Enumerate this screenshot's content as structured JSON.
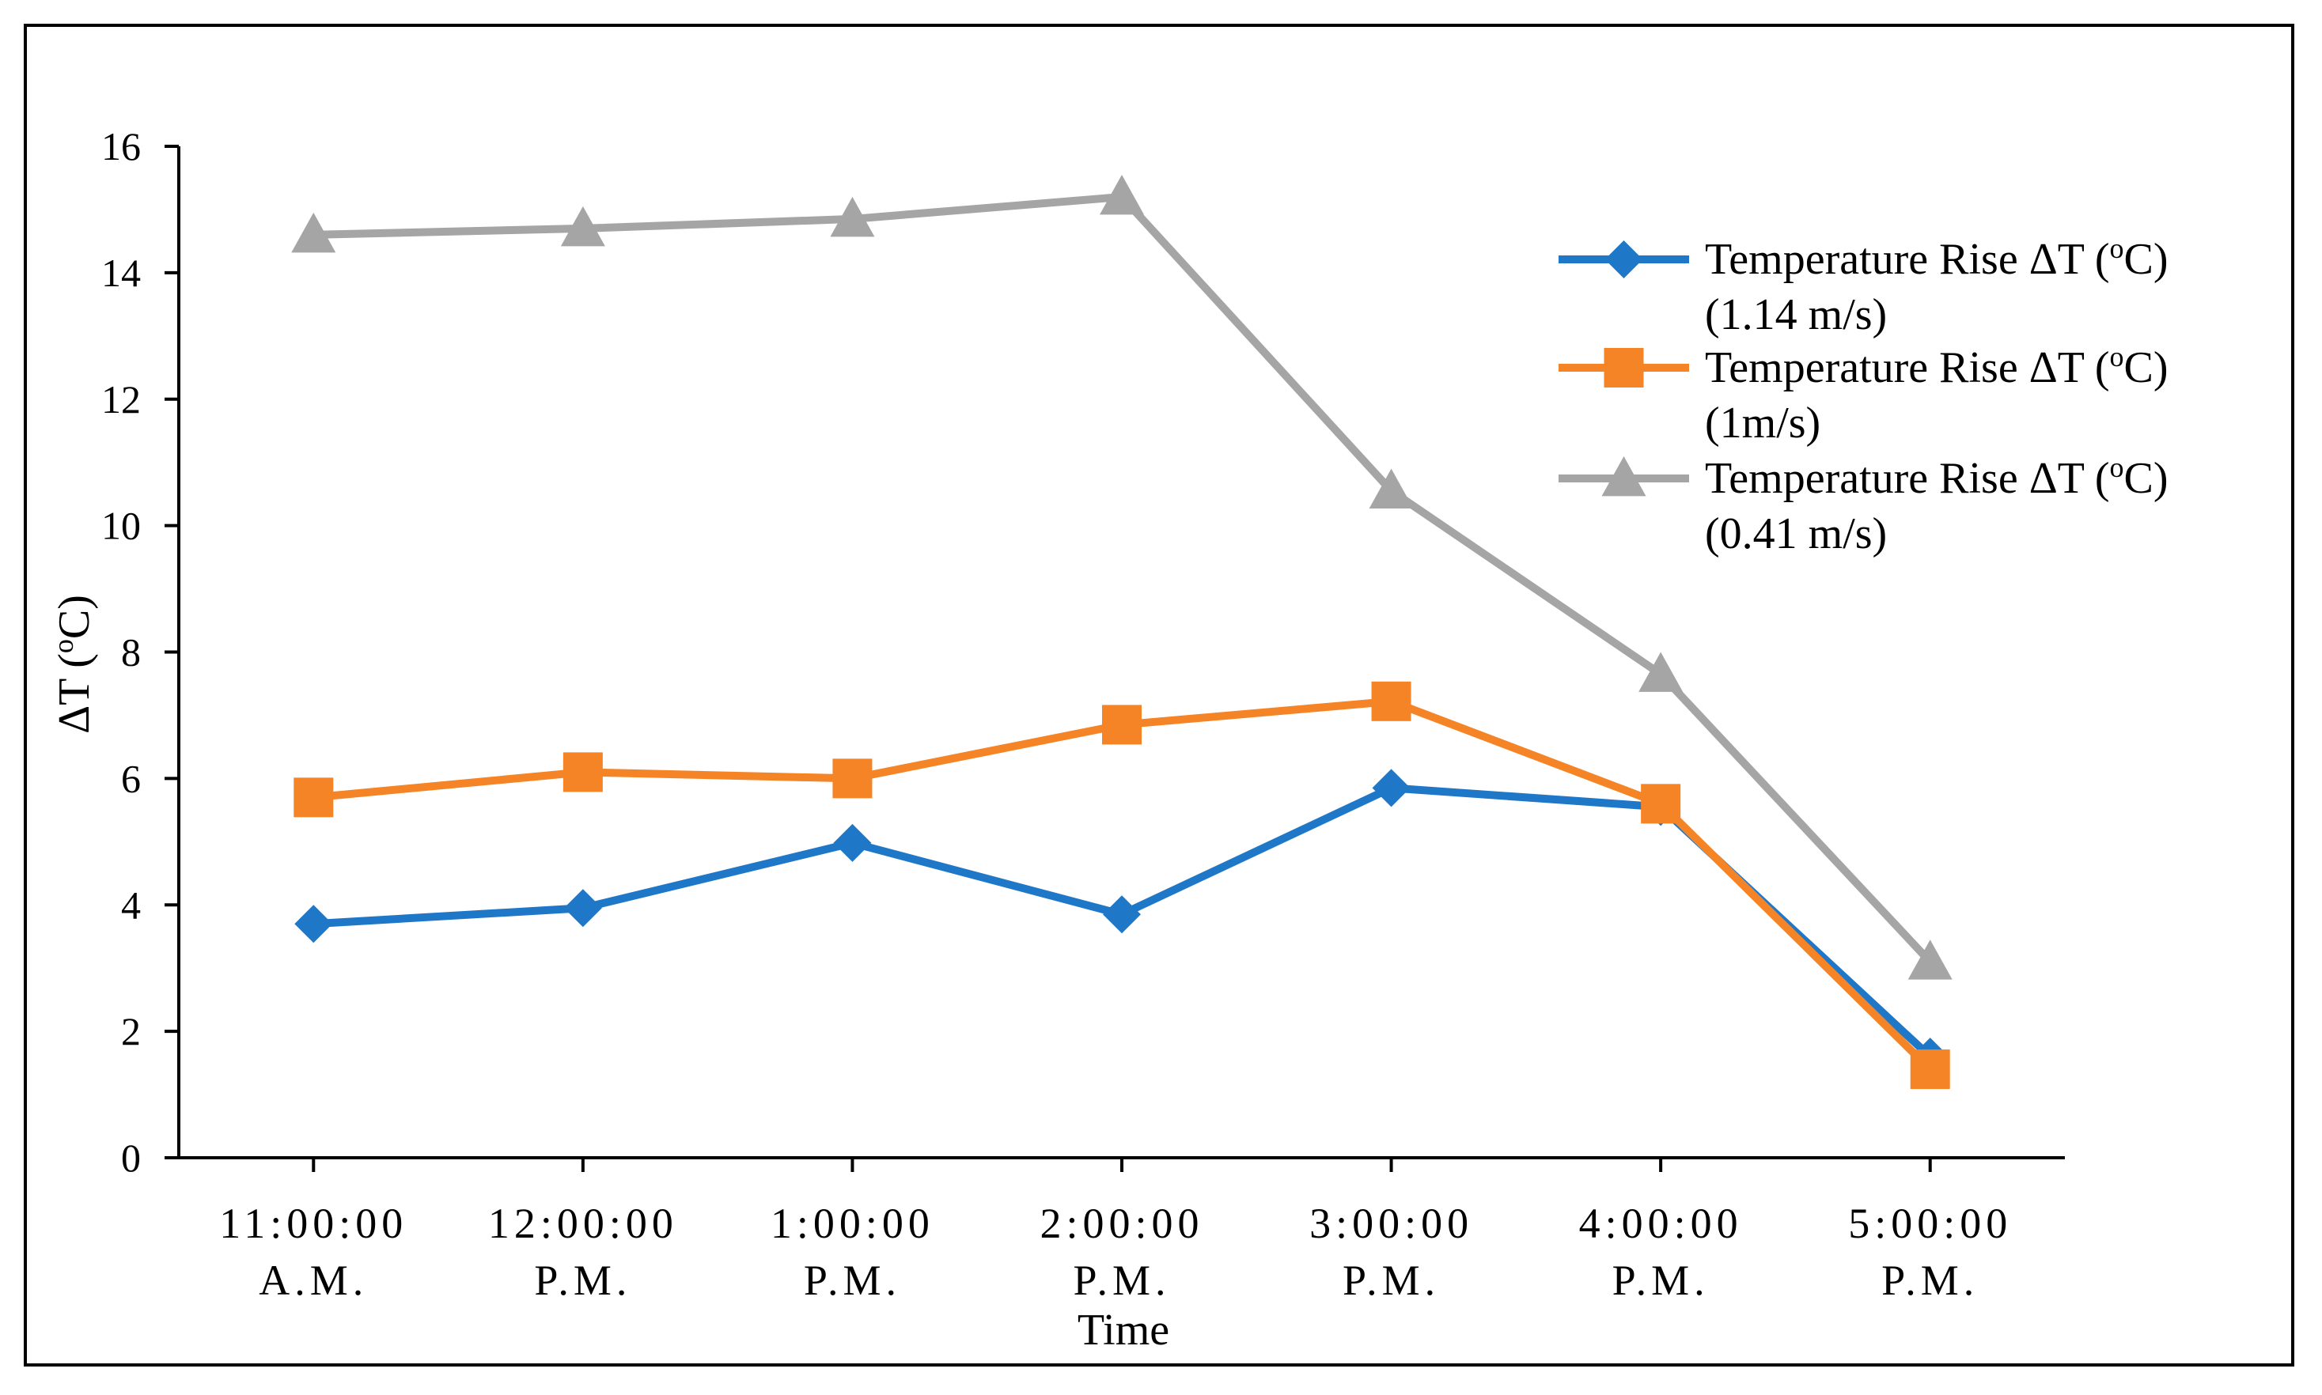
{
  "chart_data": {
    "type": "line",
    "title": "",
    "xlabel": "Time",
    "ylabel": "ΔT (",
    "ylabel_sup": "o",
    "ylabel_tail": "C)",
    "ylim": [
      0,
      16
    ],
    "yticks": [
      "0",
      "2",
      "4",
      "6",
      "8",
      "10",
      "12",
      "14",
      "16"
    ],
    "categories": [
      [
        "11:00:00",
        "A.M."
      ],
      [
        "12:00:00",
        "P.M."
      ],
      [
        "1:00:00",
        "P.M."
      ],
      [
        "2:00:00",
        "P.M."
      ],
      [
        "3:00:00",
        "P.M."
      ],
      [
        "4:00:00",
        "P.M."
      ],
      [
        "5:00:00",
        "P.M."
      ]
    ],
    "grid": false,
    "legend_position": "top-right",
    "series": [
      {
        "name_line1": "Temperature Rise ΔT (",
        "name_sup": "o",
        "name_tail": "C)",
        "name_line2": "(1.14 m/s)",
        "color": "#1f77c8",
        "marker": "diamond",
        "values": [
          3.7,
          3.95,
          4.98,
          3.85,
          5.85,
          5.55,
          1.6
        ]
      },
      {
        "name_line1": "Temperature Rise ΔT (",
        "name_sup": "o",
        "name_tail": "C)",
        "name_line2": "(1m/s)",
        "color": "#f58427",
        "marker": "square",
        "values": [
          5.7,
          6.1,
          6.0,
          6.85,
          7.22,
          5.6,
          1.4
        ]
      },
      {
        "name_line1": "Temperature Rise ΔT (",
        "name_sup": "o",
        "name_tail": "C)",
        "name_line2": "(0.41 m/s)",
        "color": "#a5a5a5",
        "marker": "triangle",
        "values": [
          14.6,
          14.7,
          14.85,
          15.2,
          10.55,
          7.65,
          3.1
        ]
      }
    ]
  }
}
